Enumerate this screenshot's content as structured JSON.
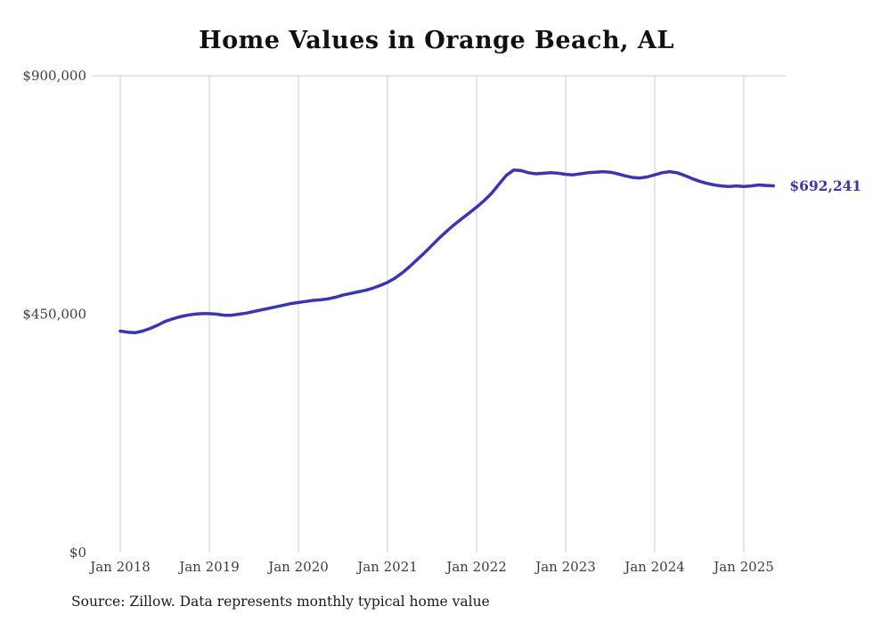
{
  "title": "Home Values in Orange Beach, AL",
  "source": "Source: Zillow. Data represents monthly typical home value",
  "end_label": "$692,241",
  "colors": {
    "line": "#3a36b2",
    "grid": "#cccccc",
    "axis_text": "#3d3d3d",
    "title_text": "#111111",
    "background": "#ffffff"
  },
  "chart_data": {
    "type": "line",
    "title": "Home Values in Orange Beach, AL",
    "series_name": "Typical home value",
    "x_start": "Jan 2018",
    "points_per_year": 12,
    "x_tick_labels": [
      "Jan 2018",
      "Jan 2019",
      "Jan 2020",
      "Jan 2021",
      "Jan 2022",
      "Jan 2023",
      "Jan 2024",
      "Jan 2025"
    ],
    "y_ticks": [
      {
        "value": 0,
        "label": "$0"
      },
      {
        "value": 450000,
        "label": "$450,000"
      },
      {
        "value": 900000,
        "label": "$900,000"
      }
    ],
    "ylim": [
      0,
      900000
    ],
    "grid": "vertical-plus-top-rule",
    "legend": "none",
    "end_value": 692241,
    "end_label": "$692,241",
    "values": [
      418000,
      416000,
      415000,
      418000,
      423000,
      429000,
      436000,
      441000,
      445000,
      448000,
      450000,
      451000,
      451000,
      450000,
      448000,
      448000,
      450000,
      452000,
      455000,
      458000,
      461000,
      464000,
      467000,
      470000,
      472000,
      474000,
      476000,
      477000,
      479000,
      482000,
      486000,
      489000,
      492000,
      495000,
      499000,
      504000,
      510000,
      518000,
      528000,
      540000,
      553000,
      566000,
      580000,
      594000,
      607000,
      619000,
      630000,
      641000,
      652000,
      664000,
      678000,
      695000,
      712000,
      722000,
      721000,
      717000,
      715000,
      716000,
      717000,
      716000,
      714000,
      713000,
      715000,
      717000,
      718000,
      719000,
      718000,
      715000,
      711000,
      708000,
      707000,
      709000,
      713000,
      717000,
      719000,
      717000,
      712000,
      706000,
      701000,
      697000,
      694000,
      692000,
      691000,
      692000,
      691000,
      692000,
      694000,
      693000,
      692241
    ]
  }
}
